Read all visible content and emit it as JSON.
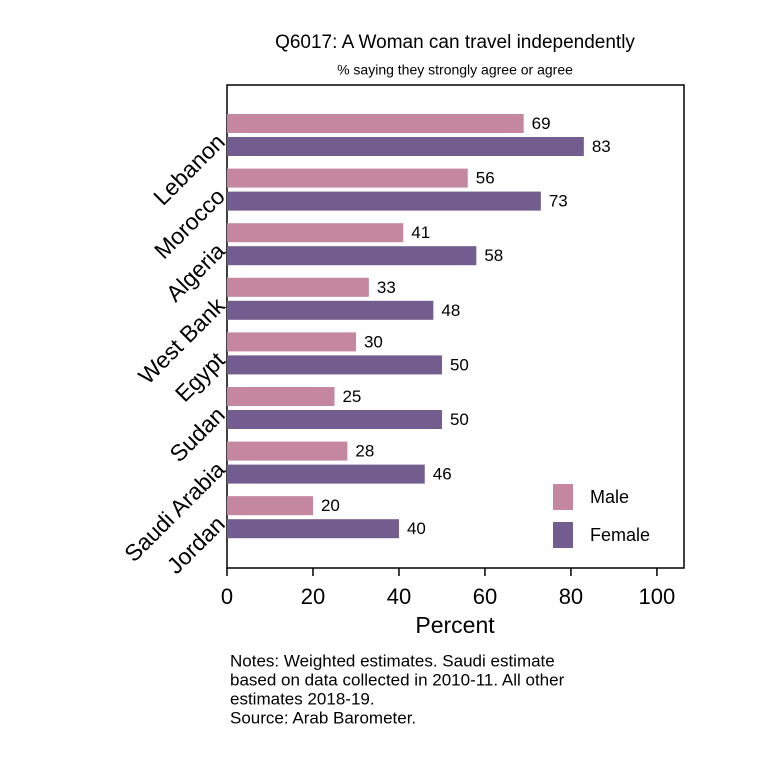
{
  "chart_data": {
    "type": "hbar",
    "title": "Q6017: A Woman can travel independently",
    "subtitle": "% saying they strongly agree or agree",
    "categories": [
      "Lebanon",
      "Morocco",
      "Algeria",
      "West Bank",
      "Egypt",
      "Sudan",
      "Saudi Arabia",
      "Jordan"
    ],
    "series": [
      {
        "name": "Male",
        "color": "#c4879f",
        "values": [
          69,
          56,
          41,
          33,
          30,
          25,
          28,
          20
        ]
      },
      {
        "name": "Female",
        "color": "#735d8f",
        "values": [
          83,
          73,
          58,
          48,
          50,
          50,
          46,
          40
        ]
      }
    ],
    "xlim": [
      0,
      106.3
    ],
    "xticks": [
      0,
      20,
      40,
      60,
      80,
      100
    ],
    "x_label": "Percent",
    "legend": "bottom-right",
    "notes": [
      "Notes: Weighted estimates. Saudi estimate",
      "based on data collected in 2010-11. All other",
      "estimates 2018-19.",
      "Source: Arab Barometer."
    ]
  }
}
